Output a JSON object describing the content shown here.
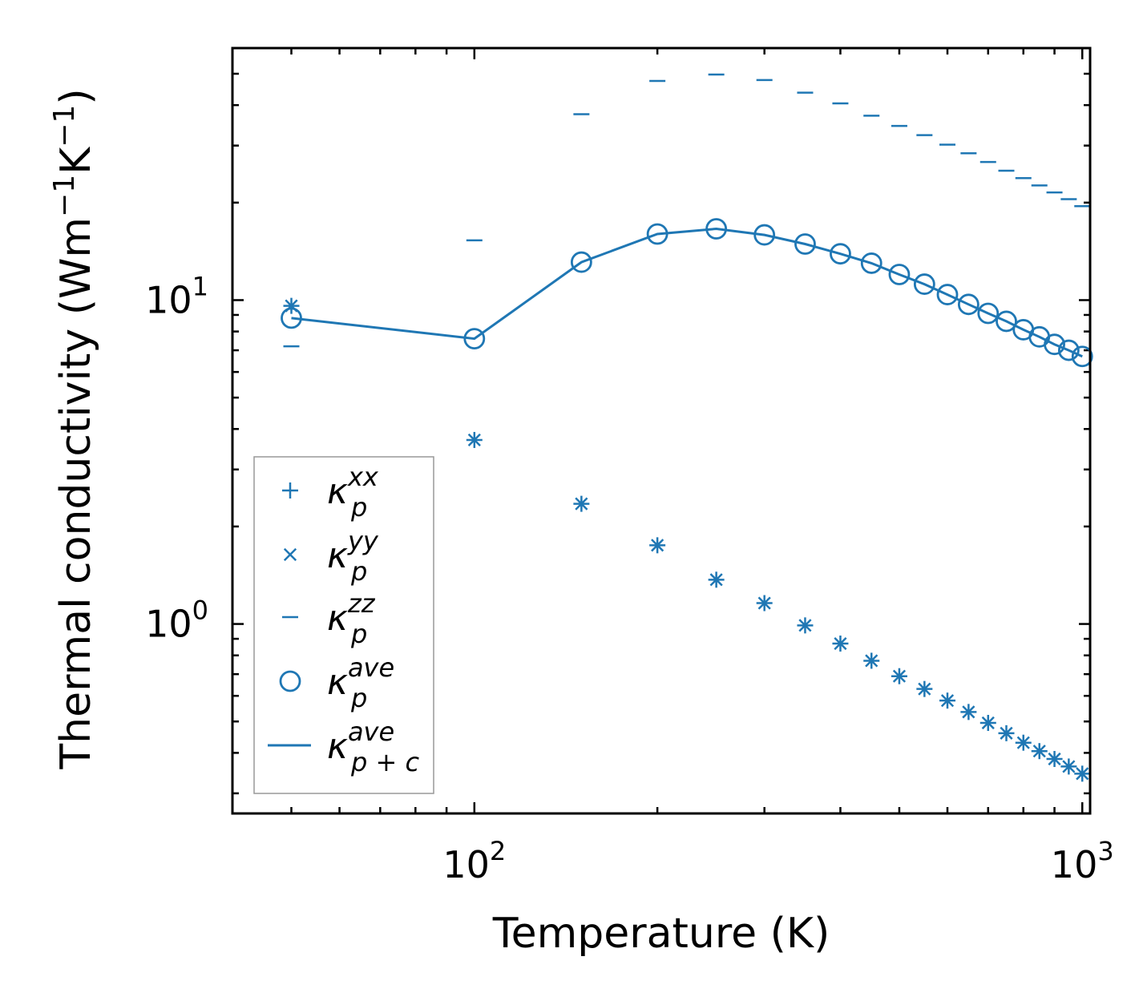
{
  "chart_data": {
    "type": "scatter",
    "xlabel": "Temperature (K)",
    "ylabel": "Thermal conductivity (Wm",
    "ylabel_unit_parts": [
      "Wm",
      "−1",
      "K",
      "−1",
      ")"
    ],
    "x_scale": "log",
    "y_scale": "log",
    "xlim": [
      40,
      1030
    ],
    "ylim": [
      0.26,
      60
    ],
    "x_ticks": [
      {
        "value": 100,
        "base": "10",
        "exp": "2"
      },
      {
        "value": 1000,
        "base": "10",
        "exp": "3"
      }
    ],
    "y_ticks": [
      {
        "value": 1,
        "base": "10",
        "exp": "0"
      },
      {
        "value": 10,
        "base": "10",
        "exp": "1"
      }
    ],
    "color": "#1f77b4",
    "x": [
      50,
      100,
      150,
      200,
      250,
      300,
      350,
      400,
      450,
      500,
      550,
      600,
      650,
      700,
      750,
      800,
      850,
      900,
      950,
      1000
    ],
    "series": [
      {
        "name": "xx",
        "marker": "+",
        "values": [
          9.6,
          3.7,
          2.35,
          1.75,
          1.37,
          1.16,
          0.99,
          0.87,
          0.77,
          0.69,
          0.63,
          0.58,
          0.535,
          0.495,
          0.46,
          0.43,
          0.405,
          0.383,
          0.363,
          0.345
        ]
      },
      {
        "name": "yy",
        "marker": "x",
        "values": [
          9.6,
          3.7,
          2.35,
          1.75,
          1.37,
          1.16,
          0.99,
          0.87,
          0.77,
          0.69,
          0.63,
          0.58,
          0.535,
          0.495,
          0.46,
          0.43,
          0.405,
          0.383,
          0.363,
          0.345
        ]
      },
      {
        "name": "zz",
        "marker": "_",
        "values": [
          7.2,
          15.3,
          37.5,
          47.5,
          49.7,
          47.8,
          43.7,
          40.5,
          37.1,
          34.5,
          32.3,
          30.2,
          28.4,
          26.7,
          25.1,
          23.8,
          22.6,
          21.5,
          20.5,
          19.5
        ]
      },
      {
        "name": "ave",
        "marker": "o",
        "values": [
          8.8,
          7.6,
          13.1,
          16.0,
          16.6,
          15.9,
          14.9,
          13.9,
          13.0,
          12.0,
          11.2,
          10.4,
          9.7,
          9.1,
          8.6,
          8.1,
          7.7,
          7.3,
          7.0,
          6.7
        ]
      },
      {
        "name": "ave_pc",
        "marker": "line",
        "values": [
          8.8,
          7.6,
          13.1,
          16.0,
          16.6,
          15.9,
          14.9,
          13.9,
          13.0,
          12.0,
          11.2,
          10.4,
          9.7,
          9.1,
          8.6,
          8.1,
          7.7,
          7.3,
          7.0,
          6.7
        ]
      }
    ],
    "legend": {
      "position": "lower-left",
      "entries": [
        {
          "series": "xx",
          "symbol": "κ",
          "sub": "p",
          "sup": "xx"
        },
        {
          "series": "yy",
          "symbol": "κ",
          "sub": "p",
          "sup": "yy"
        },
        {
          "series": "zz",
          "symbol": "κ",
          "sub": "p",
          "sup": "zz"
        },
        {
          "series": "ave",
          "symbol": "κ",
          "sub": "p",
          "sup": "ave"
        },
        {
          "series": "ave_pc",
          "symbol": "κ",
          "sub": "p + c",
          "sup": "ave"
        }
      ]
    }
  }
}
